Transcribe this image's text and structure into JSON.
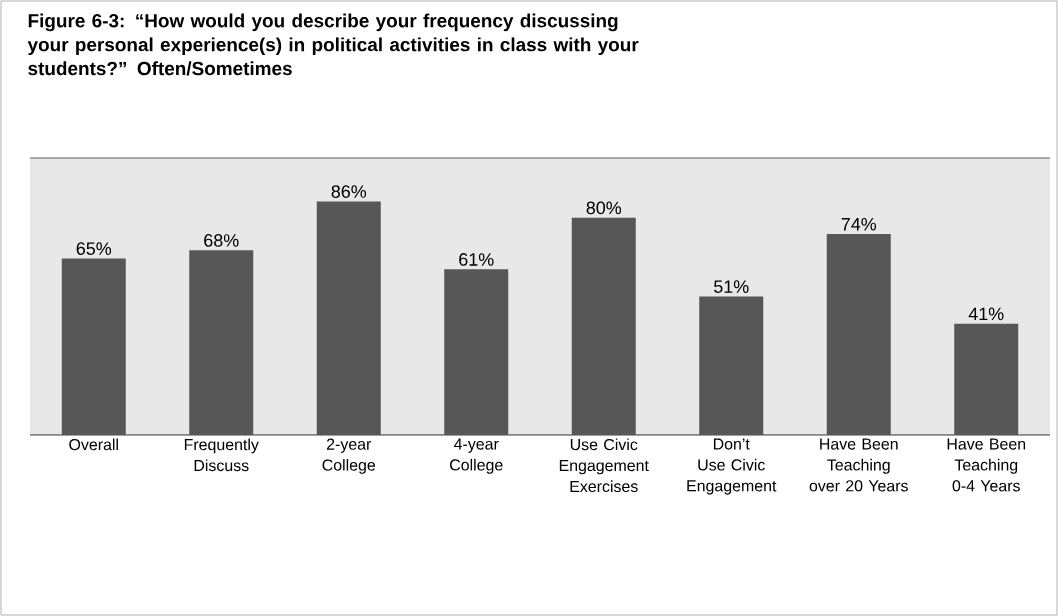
{
  "chart_data": {
    "type": "bar",
    "title": "Figure 6-3:      “How would you describe your frequency discussing your personal experience(s) in political activities in class with your students?” Often/Sometimes",
    "categories": [
      "Overall",
      "Frequently Discuss",
      "2-year College",
      "4-year College",
      "Use Civic Engagement Exercises",
      "Don’t Use Civic Engagement",
      "Have Been Teaching over 20 Years",
      "Have Been Teaching 0-4 Years"
    ],
    "values": [
      65,
      68,
      86,
      61,
      80,
      51,
      74,
      41
    ],
    "value_labels": [
      "65%",
      "68%",
      "86%",
      "61%",
      "80%",
      "51%",
      "74%",
      "41%"
    ],
    "color": "#575757",
    "ylim": [
      0,
      102
    ]
  }
}
